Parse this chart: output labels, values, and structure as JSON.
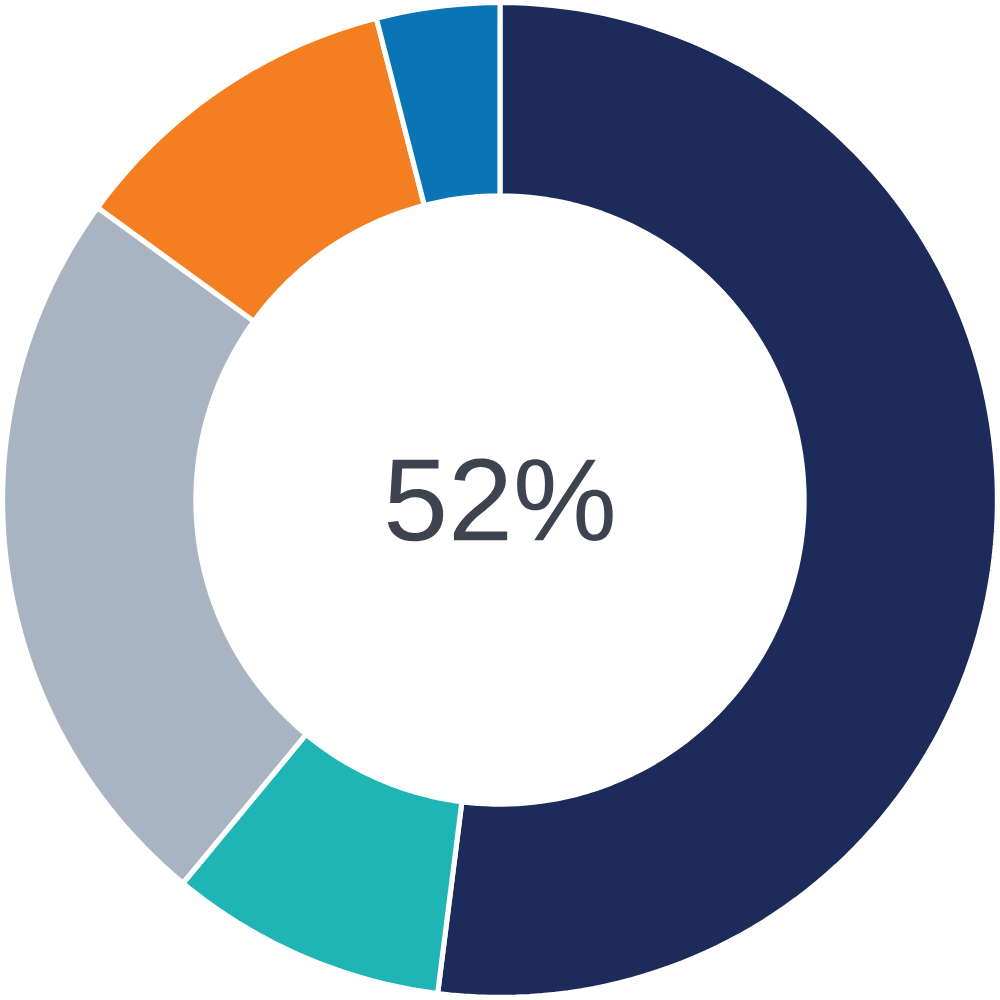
{
  "chart_data": {
    "type": "donut",
    "categories": [
      null,
      null,
      null,
      null,
      null
    ],
    "values": [
      52,
      9,
      24,
      11,
      4
    ],
    "colors": [
      "#1c2b5a",
      "#1fb5b5",
      "#a9b4c2",
      "#f47f20",
      "#0a74b5"
    ],
    "annotations": [
      "52%"
    ]
  }
}
